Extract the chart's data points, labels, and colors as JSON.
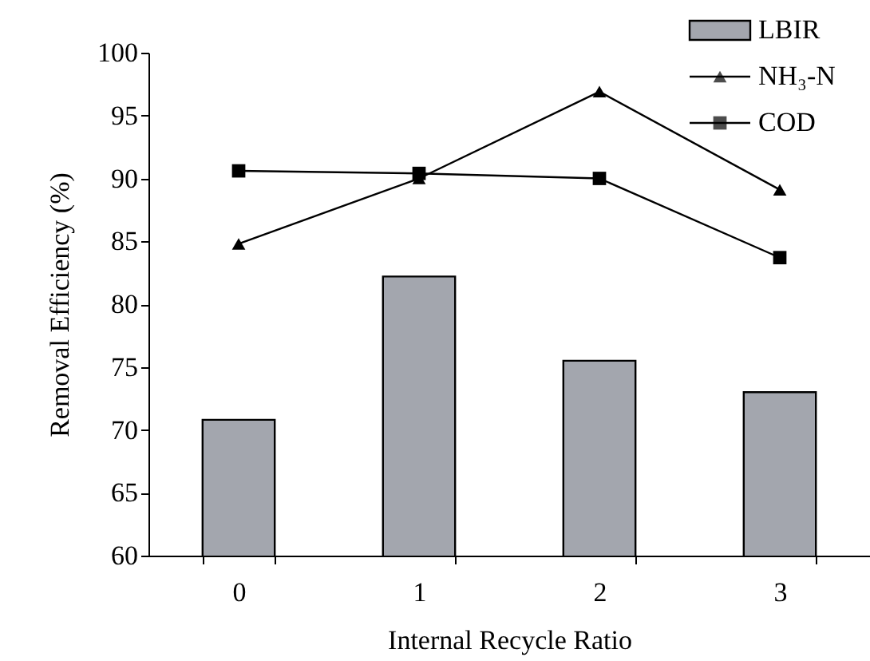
{
  "chart_data": {
    "type": "bar",
    "xlabel": "Internal Recycle Ratio",
    "ylabel": "Removal Efficiency (%)",
    "categories": [
      "0",
      "1",
      "2",
      "3"
    ],
    "series": [
      {
        "name": "LBIR",
        "color": "#a3a6ae",
        "values": [
          70.8,
          82.2,
          75.5,
          73.0
        ]
      },
      {
        "name": "NH₃-N",
        "type": "line",
        "color": "#000000",
        "marker": "triangle",
        "values": [
          84.8,
          90.0,
          96.9,
          89.1
        ]
      },
      {
        "name": "COD",
        "type": "line",
        "color": "#000000",
        "marker": "square",
        "values": [
          90.6,
          90.4,
          90.0,
          83.7
        ]
      }
    ],
    "ylim": [
      60,
      100
    ],
    "yticks": [
      60,
      65,
      70,
      75,
      80,
      85,
      90,
      95,
      100
    ],
    "grid": false,
    "legend": "top right"
  }
}
